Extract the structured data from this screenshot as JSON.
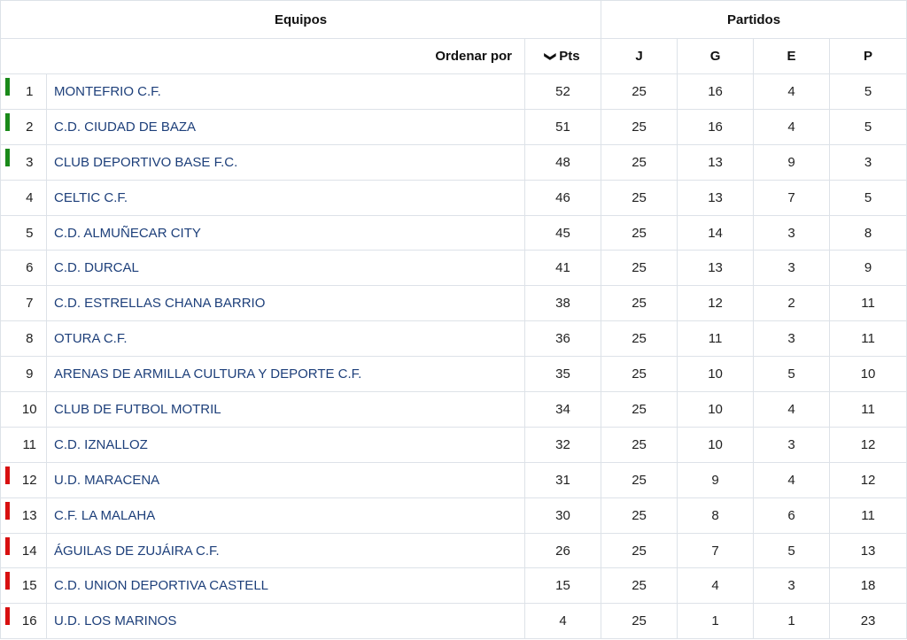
{
  "header": {
    "teams_group": "Equipos",
    "matches_group": "Partidos",
    "sort_by": "Ordenar por",
    "pts": "Pts",
    "sort_icon": "chevron-down-icon",
    "j": "J",
    "g": "G",
    "e": "E",
    "p": "P"
  },
  "colors": {
    "promotion": "#1a8a1a",
    "relegation": "#d81010",
    "team_link": "#1d3f7a"
  },
  "rows": [
    {
      "pos": "1",
      "team": "MONTEFRIO C.F.",
      "pts": "52",
      "j": "25",
      "g": "16",
      "e": "4",
      "p": "5",
      "zone": "promotion"
    },
    {
      "pos": "2",
      "team": "C.D. CIUDAD DE BAZA",
      "pts": "51",
      "j": "25",
      "g": "16",
      "e": "4",
      "p": "5",
      "zone": "promotion"
    },
    {
      "pos": "3",
      "team": "CLUB DEPORTIVO BASE F.C.",
      "pts": "48",
      "j": "25",
      "g": "13",
      "e": "9",
      "p": "3",
      "zone": "promotion"
    },
    {
      "pos": "4",
      "team": "CELTIC C.F.",
      "pts": "46",
      "j": "25",
      "g": "13",
      "e": "7",
      "p": "5",
      "zone": ""
    },
    {
      "pos": "5",
      "team": "C.D. ALMUÑECAR CITY",
      "pts": "45",
      "j": "25",
      "g": "14",
      "e": "3",
      "p": "8",
      "zone": ""
    },
    {
      "pos": "6",
      "team": "C.D. DURCAL",
      "pts": "41",
      "j": "25",
      "g": "13",
      "e": "3",
      "p": "9",
      "zone": ""
    },
    {
      "pos": "7",
      "team": "C.D. ESTRELLAS CHANA BARRIO",
      "pts": "38",
      "j": "25",
      "g": "12",
      "e": "2",
      "p": "11",
      "zone": ""
    },
    {
      "pos": "8",
      "team": "OTURA C.F.",
      "pts": "36",
      "j": "25",
      "g": "11",
      "e": "3",
      "p": "11",
      "zone": ""
    },
    {
      "pos": "9",
      "team": "ARENAS DE ARMILLA CULTURA Y DEPORTE C.F.",
      "pts": "35",
      "j": "25",
      "g": "10",
      "e": "5",
      "p": "10",
      "zone": ""
    },
    {
      "pos": "10",
      "team": "CLUB DE FUTBOL MOTRIL",
      "pts": "34",
      "j": "25",
      "g": "10",
      "e": "4",
      "p": "11",
      "zone": ""
    },
    {
      "pos": "11",
      "team": "C.D. IZNALLOZ",
      "pts": "32",
      "j": "25",
      "g": "10",
      "e": "3",
      "p": "12",
      "zone": ""
    },
    {
      "pos": "12",
      "team": "U.D. MARACENA",
      "pts": "31",
      "j": "25",
      "g": "9",
      "e": "4",
      "p": "12",
      "zone": "relegation"
    },
    {
      "pos": "13",
      "team": "C.F. LA MALAHA",
      "pts": "30",
      "j": "25",
      "g": "8",
      "e": "6",
      "p": "11",
      "zone": "relegation"
    },
    {
      "pos": "14",
      "team": "ÁGUILAS DE ZUJÁIRA C.F.",
      "pts": "26",
      "j": "25",
      "g": "7",
      "e": "5",
      "p": "13",
      "zone": "relegation"
    },
    {
      "pos": "15",
      "team": "C.D. UNION DEPORTIVA CASTELL",
      "pts": "15",
      "j": "25",
      "g": "4",
      "e": "3",
      "p": "18",
      "zone": "relegation"
    },
    {
      "pos": "16",
      "team": "U.D. LOS MARINOS",
      "pts": "4",
      "j": "25",
      "g": "1",
      "e": "1",
      "p": "23",
      "zone": "relegation"
    }
  ]
}
